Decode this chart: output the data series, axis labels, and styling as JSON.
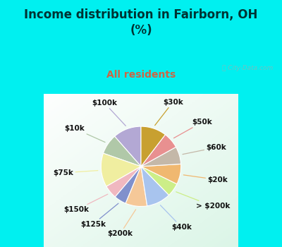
{
  "title": "Income distribution in Fairborn, OH\n(%)",
  "subtitle": "All residents",
  "title_color": "#003333",
  "subtitle_color": "#cc6644",
  "bg_cyan": "#00f0f0",
  "bg_chart_colors": [
    "#e8f5ee",
    "#d8eee8",
    "#c8e8e0"
  ],
  "watermark": "ⓘ City-Data.com",
  "labels": [
    "$100k",
    "$10k",
    "$75k",
    "$150k",
    "$125k",
    "$200k",
    "$40k",
    "> $200k",
    "$20k",
    "$60k",
    "$50k",
    "$30k"
  ],
  "values": [
    10.5,
    7.5,
    12.5,
    5.0,
    4.5,
    8.0,
    9.0,
    5.0,
    7.5,
    6.5,
    6.0,
    9.5
  ],
  "colors": [
    "#b3a8d4",
    "#b0c8a8",
    "#f0eea0",
    "#f0b8c0",
    "#8090cc",
    "#f5c898",
    "#a8c4ee",
    "#ccee88",
    "#f0b870",
    "#c4b8a8",
    "#e89090",
    "#c8a030"
  ],
  "label_fontsize": 7.5,
  "startangle": 90
}
